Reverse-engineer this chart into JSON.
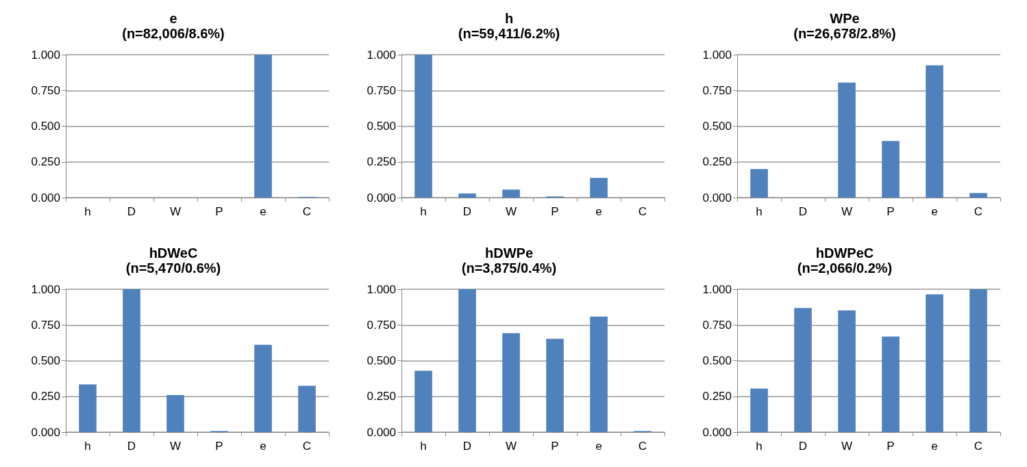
{
  "chart_data": [
    {
      "type": "bar",
      "title": "e",
      "subtitle": "(n=82,006/8.6%)",
      "categories": [
        "h",
        "D",
        "W",
        "P",
        "e",
        "C"
      ],
      "values": [
        0,
        0,
        0,
        0,
        1.0,
        0.005
      ],
      "color": "#4f81bd",
      "ylim": [
        0,
        1
      ],
      "yticks": [
        {
          "value": 0,
          "label": "0.000"
        },
        {
          "value": 0.25,
          "label": "0.250"
        },
        {
          "value": 0.5,
          "label": "0.500"
        },
        {
          "value": 0.75,
          "label": "0.750"
        },
        {
          "value": 1,
          "label": "1.000"
        }
      ],
      "grid": "y"
    },
    {
      "type": "bar",
      "title": "h",
      "subtitle": "(n=59,411/6.2%)",
      "categories": [
        "h",
        "D",
        "W",
        "P",
        "e",
        "C"
      ],
      "values": [
        1.0,
        0.029,
        0.056,
        0.008,
        0.138,
        0
      ],
      "color": "#4f81bd",
      "ylim": [
        0,
        1
      ],
      "yticks": [
        {
          "value": 0,
          "label": "0.000"
        },
        {
          "value": 0.25,
          "label": "0.250"
        },
        {
          "value": 0.5,
          "label": "0.500"
        },
        {
          "value": 0.75,
          "label": "0.750"
        },
        {
          "value": 1,
          "label": "1.000"
        }
      ],
      "grid": "y"
    },
    {
      "type": "bar",
      "title": "WPe",
      "subtitle": "(n=26,678/2.8%)",
      "categories": [
        "h",
        "D",
        "W",
        "P",
        "e",
        "C"
      ],
      "values": [
        0.2,
        0,
        0.805,
        0.396,
        0.926,
        0.032
      ],
      "color": "#4f81bd",
      "ylim": [
        0,
        1
      ],
      "yticks": [
        {
          "value": 0,
          "label": "0.000"
        },
        {
          "value": 0.25,
          "label": "0.250"
        },
        {
          "value": 0.5,
          "label": "0.500"
        },
        {
          "value": 0.75,
          "label": "0.750"
        },
        {
          "value": 1,
          "label": "1.000"
        }
      ],
      "grid": "y"
    },
    {
      "type": "bar",
      "title": "hDWeC",
      "subtitle": "(n=5,470/0.6%)",
      "categories": [
        "h",
        "D",
        "W",
        "P",
        "e",
        "C"
      ],
      "values": [
        0.334,
        1.0,
        0.259,
        0.008,
        0.611,
        0.324
      ],
      "color": "#4f81bd",
      "ylim": [
        0,
        1
      ],
      "yticks": [
        {
          "value": 0,
          "label": "0.000"
        },
        {
          "value": 0.25,
          "label": "0.250"
        },
        {
          "value": 0.5,
          "label": "0.500"
        },
        {
          "value": 0.75,
          "label": "0.750"
        },
        {
          "value": 1,
          "label": "1.000"
        }
      ],
      "grid": "y"
    },
    {
      "type": "bar",
      "title": "hDWPe",
      "subtitle": "(n=3,875/0.4%)",
      "categories": [
        "h",
        "D",
        "W",
        "P",
        "e",
        "C"
      ],
      "values": [
        0.429,
        1.0,
        0.692,
        0.653,
        0.809,
        0.008
      ],
      "color": "#4f81bd",
      "ylim": [
        0,
        1
      ],
      "yticks": [
        {
          "value": 0,
          "label": "0.000"
        },
        {
          "value": 0.25,
          "label": "0.250"
        },
        {
          "value": 0.5,
          "label": "0.500"
        },
        {
          "value": 0.75,
          "label": "0.750"
        },
        {
          "value": 1,
          "label": "1.000"
        }
      ],
      "grid": "y"
    },
    {
      "type": "bar",
      "title": "hDWPeC",
      "subtitle": "(n=2,066/0.2%)",
      "categories": [
        "h",
        "D",
        "W",
        "P",
        "e",
        "C"
      ],
      "values": [
        0.305,
        0.868,
        0.852,
        0.669,
        0.964,
        1.0
      ],
      "color": "#4f81bd",
      "ylim": [
        0,
        1
      ],
      "yticks": [
        {
          "value": 0,
          "label": "0.000"
        },
        {
          "value": 0.25,
          "label": "0.250"
        },
        {
          "value": 0.5,
          "label": "0.500"
        },
        {
          "value": 0.75,
          "label": "0.750"
        },
        {
          "value": 1,
          "label": "1.000"
        }
      ],
      "grid": "y"
    }
  ]
}
